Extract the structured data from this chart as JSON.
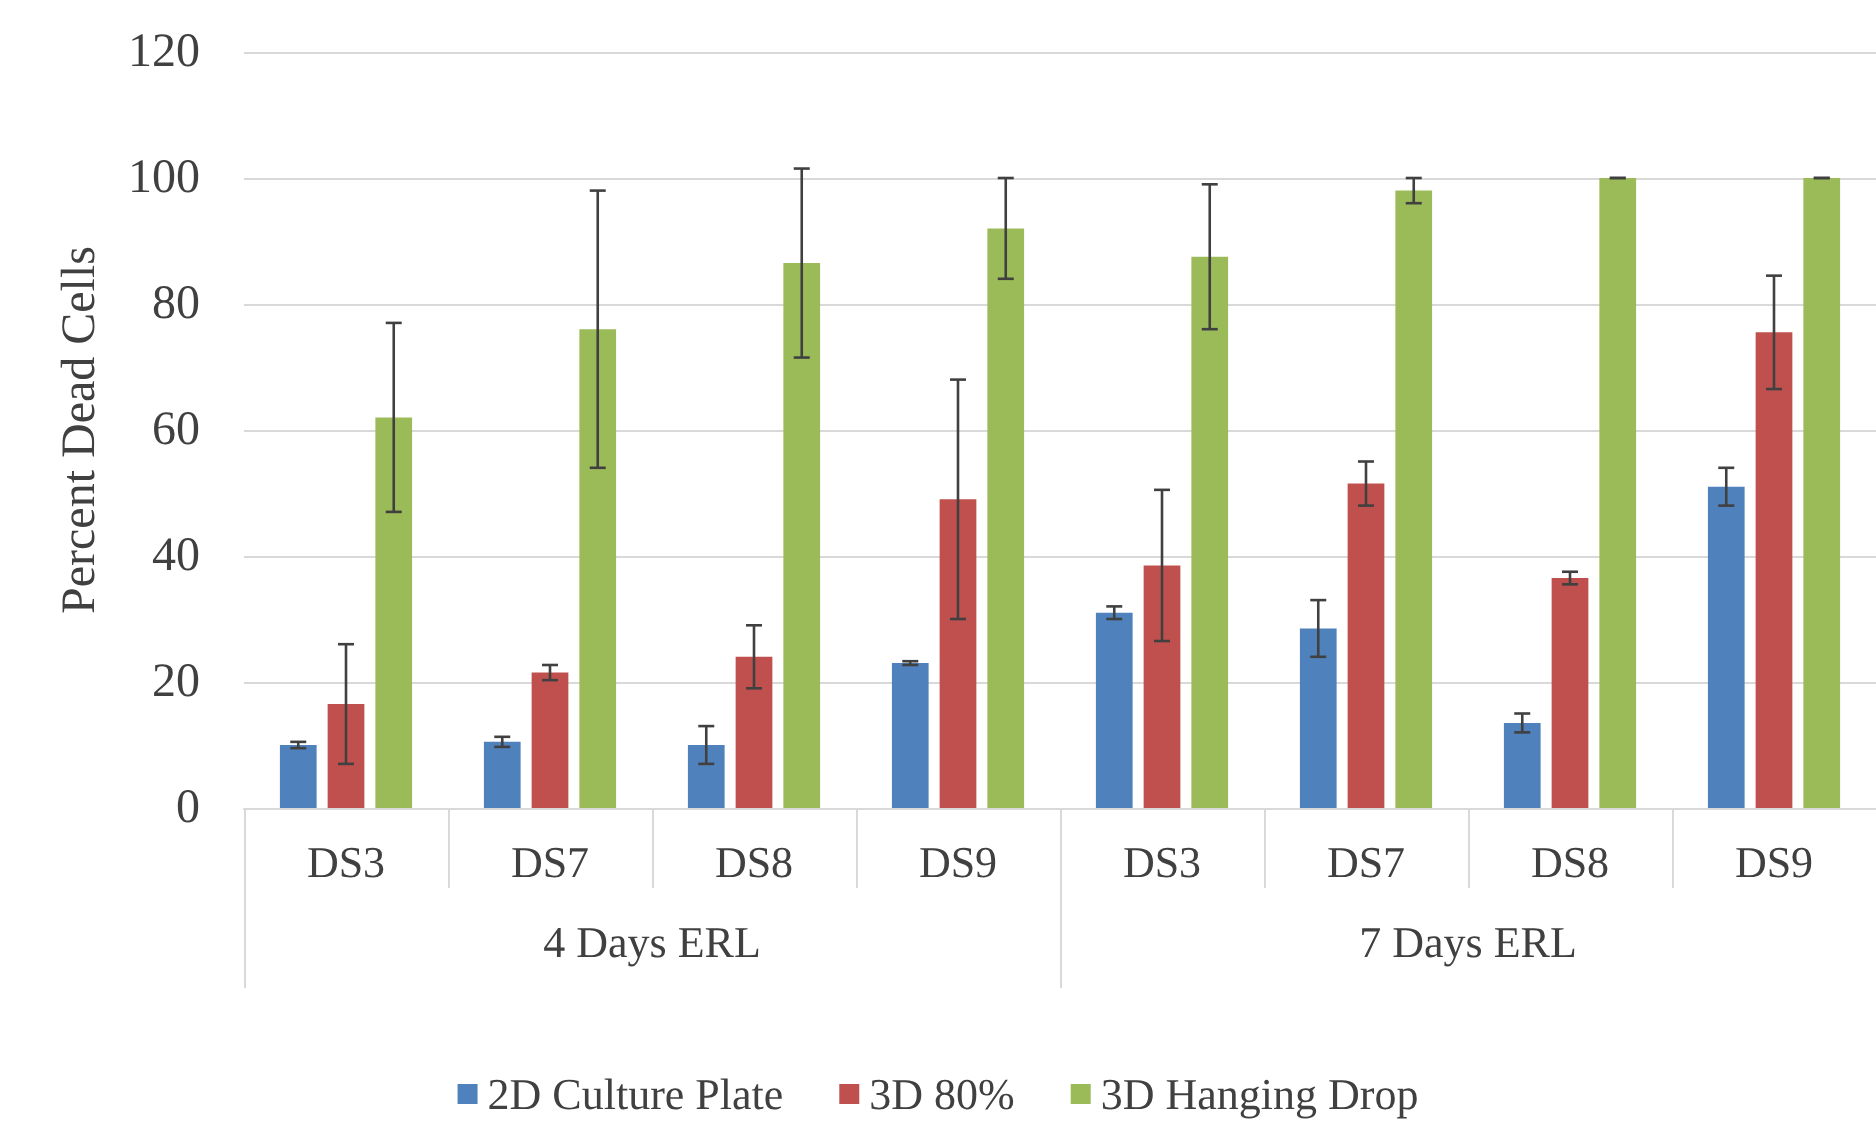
{
  "chart_data": {
    "type": "bar",
    "ylabel": "Percent Dead Cells",
    "categories": [
      "DS3",
      "DS7",
      "DS8",
      "DS9",
      "DS3",
      "DS7",
      "DS8",
      "DS9"
    ],
    "annotations": [
      "4 Days ERL",
      "7 Days ERL"
    ],
    "series": [
      {
        "name": "2D Culture Plate",
        "color": "#4f81bd",
        "values": [
          10,
          10.5,
          10,
          23,
          31,
          28.5,
          13.5,
          51
        ],
        "errors": [
          0.5,
          0.8,
          3,
          0.3,
          1,
          4.5,
          1.5,
          3
        ]
      },
      {
        "name": "3D 80%",
        "color": "#c0504d",
        "values": [
          16.5,
          21.5,
          24,
          49,
          38.5,
          51.5,
          36.5,
          75.5
        ],
        "errors": [
          9.5,
          1.2,
          5,
          19,
          12,
          3.5,
          1,
          9
        ]
      },
      {
        "name": "3D Hanging Drop",
        "color": "#9bbb59",
        "values": [
          62,
          76,
          86.5,
          92,
          87.5,
          98,
          100,
          100
        ],
        "errors": [
          15,
          22,
          15,
          8,
          11.5,
          2,
          0,
          0
        ]
      }
    ],
    "ylim": [
      0,
      120
    ],
    "yticks": [
      0,
      20,
      40,
      60,
      80,
      100,
      120
    ],
    "grid": "y",
    "legend": "bottom"
  }
}
